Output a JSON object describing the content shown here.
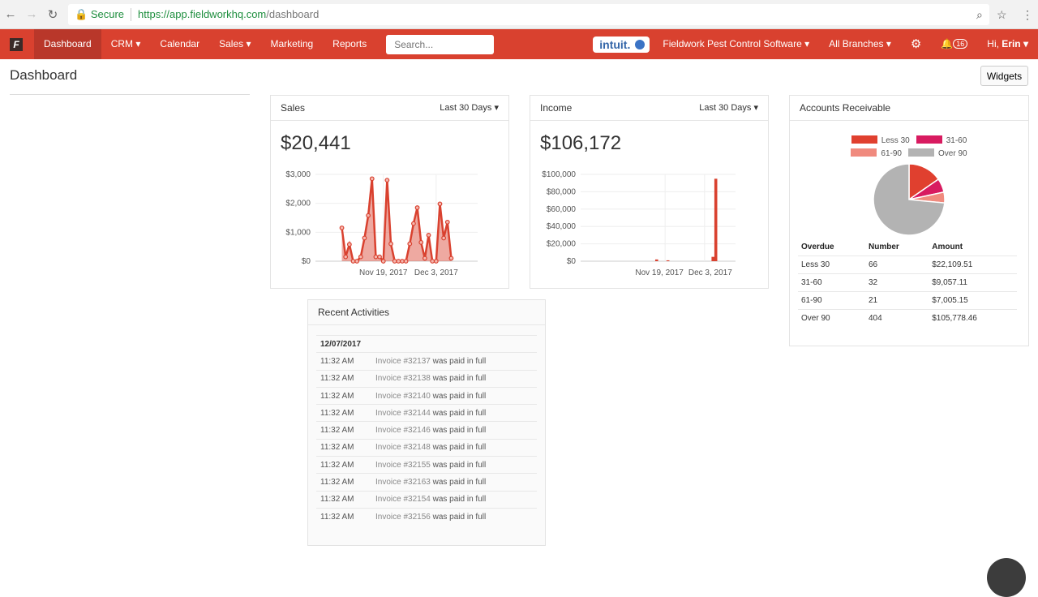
{
  "browser": {
    "secure": "Secure",
    "url_host": "https://app.fieldworkhq.com",
    "url_path": "/dashboard"
  },
  "nav": {
    "logo": "F",
    "items": [
      {
        "label": "Dashboard",
        "active": true
      },
      {
        "label": "CRM ▾"
      },
      {
        "label": "Calendar"
      },
      {
        "label": "Sales ▾"
      },
      {
        "label": "Marketing"
      },
      {
        "label": "Reports"
      }
    ],
    "search_placeholder": "Search...",
    "company": "Fieldwork Pest Control Software ▾",
    "intuit": "intuit.",
    "branches": "All Branches ▾",
    "notifications": "16",
    "greeting": "Hi,",
    "user": "Erin ▾",
    "color": "#d9412f"
  },
  "page": {
    "title": "Dashboard",
    "widgets_button": "Widgets"
  },
  "sales": {
    "title": "Sales",
    "range": "Last 30 Days ▾",
    "total": "$20,441"
  },
  "income": {
    "title": "Income",
    "range": "Last 30 Days ▾",
    "total": "$106,172"
  },
  "ar": {
    "title": "Accounts Receivable",
    "headers": [
      "Overdue",
      "Number",
      "Amount"
    ],
    "rows": [
      [
        "Less 30",
        "66",
        "$22,109.51"
      ],
      [
        "31-60",
        "32",
        "$9,057.11"
      ],
      [
        "61-90",
        "21",
        "$7,005.15"
      ],
      [
        "Over 90",
        "404",
        "$105,778.46"
      ]
    ]
  },
  "activities": {
    "title": "Recent Activities",
    "date": "12/07/2017",
    "items": [
      {
        "time": "11:32 AM",
        "invoice": "Invoice #32137",
        "text": " was paid in full"
      },
      {
        "time": "11:32 AM",
        "invoice": "Invoice #32138",
        "text": " was paid in full"
      },
      {
        "time": "11:32 AM",
        "invoice": "Invoice #32140",
        "text": " was paid in full"
      },
      {
        "time": "11:32 AM",
        "invoice": "Invoice #32144",
        "text": " was paid in full"
      },
      {
        "time": "11:32 AM",
        "invoice": "Invoice #32146",
        "text": " was paid in full"
      },
      {
        "time": "11:32 AM",
        "invoice": "Invoice #32148",
        "text": " was paid in full"
      },
      {
        "time": "11:32 AM",
        "invoice": "Invoice #32155",
        "text": " was paid in full"
      },
      {
        "time": "11:32 AM",
        "invoice": "Invoice #32163",
        "text": " was paid in full"
      },
      {
        "time": "11:32 AM",
        "invoice": "Invoice #32154",
        "text": " was paid in full"
      },
      {
        "time": "11:32 AM",
        "invoice": "Invoice #32156",
        "text": " was paid in full"
      }
    ]
  },
  "chart_data": [
    {
      "type": "area",
      "x_start": "2017-11-08",
      "x_step_days": 1,
      "xlim": [
        "2017-11-01",
        "2017-12-14"
      ],
      "x_ticks": [
        "Nov 19, 2017",
        "Dec 3, 2017"
      ],
      "y_ticks": [
        "$0",
        "$1,000",
        "$2,000",
        "$3,000"
      ],
      "ylim": [
        0,
        3000
      ],
      "grid": true,
      "color": "#d9412f",
      "values": [
        1150,
        150,
        580,
        0,
        0,
        150,
        800,
        1580,
        2850,
        150,
        150,
        0,
        2800,
        600,
        0,
        0,
        0,
        0,
        600,
        1300,
        1850,
        650,
        100,
        900,
        0,
        0,
        1980,
        800,
        1350,
        100
      ]
    },
    {
      "type": "bar",
      "xlim": [
        "2017-10-20",
        "2017-12-14"
      ],
      "x_ticks": [
        "Nov 19, 2017",
        "Dec 3, 2017"
      ],
      "y_ticks": [
        "$0",
        "$20,000",
        "$40,000",
        "$60,000",
        "$80,000",
        "$100,000"
      ],
      "ylim": [
        0,
        100000
      ],
      "grid": true,
      "color": "#d9412f",
      "points": [
        {
          "x": "2017-11-16",
          "y": 2000
        },
        {
          "x": "2017-11-20",
          "y": 1000
        },
        {
          "x": "2017-12-06",
          "y": 5000
        },
        {
          "x": "2017-12-07",
          "y": 95000
        }
      ]
    },
    {
      "type": "pie",
      "legend": "top",
      "categories": [
        "Less 30",
        "31-60",
        "61-90",
        "Over 90"
      ],
      "values": [
        22109.51,
        9057.11,
        7005.15,
        105778.46
      ],
      "colors": [
        "#e0402f",
        "#d81b60",
        "#f08a7e",
        "#b3b3b3"
      ]
    }
  ]
}
